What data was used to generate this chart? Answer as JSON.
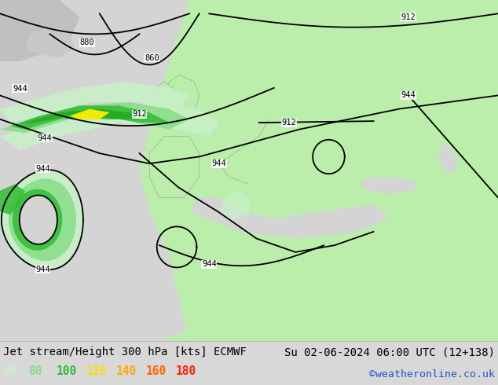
{
  "title_left": "Jet stream/Height 300 hPa [kts] ECMWF",
  "title_right": "Su 02-06-2024 06:00 UTC (12+138)",
  "credit": "©weatheronline.co.uk",
  "legend_values": [
    60,
    80,
    100,
    120,
    140,
    160,
    180
  ],
  "legend_colors": [
    "#c8f0c8",
    "#88dd88",
    "#33bb33",
    "#ffdd00",
    "#ffaa00",
    "#ff6600",
    "#ff2200"
  ],
  "sea_color": "#d4d4d4",
  "land_color": "#bbeeaa",
  "bg_color": "#d8d8d8",
  "contour_lw": 1.3,
  "label_fontsize": 7.5,
  "title_fontsize": 10,
  "legend_fontsize": 10.5
}
